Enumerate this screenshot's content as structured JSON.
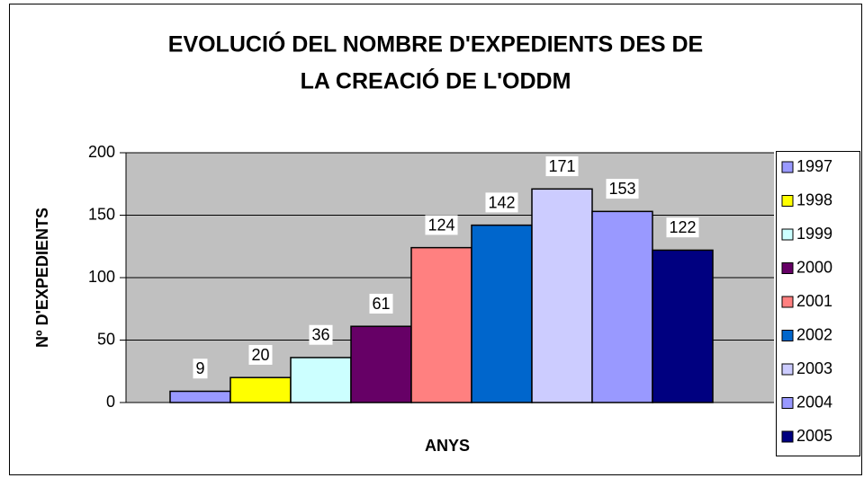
{
  "chart_data": {
    "type": "bar",
    "title": [
      "EVOLUCIÓ DEL NOMBRE D'EXPEDIENTS DES DE",
      "LA CREACIÓ DE L'ODDM"
    ],
    "x_label": "ANYS",
    "y_label": "Nº D'EXPEDIENTS",
    "series": [
      {
        "name": "1997",
        "color": "#9999ff",
        "values": [
          9
        ]
      },
      {
        "name": "1998",
        "color": "#ffff00",
        "values": [
          20
        ]
      },
      {
        "name": "1999",
        "color": "#ccffff",
        "values": [
          36
        ]
      },
      {
        "name": "2000",
        "color": "#660066",
        "values": [
          61
        ]
      },
      {
        "name": "2001",
        "color": "#ff8080",
        "values": [
          124
        ]
      },
      {
        "name": "2002",
        "color": "#0066cc",
        "values": [
          142
        ]
      },
      {
        "name": "2003",
        "color": "#ccccff",
        "values": [
          171
        ]
      },
      {
        "name": "2004",
        "color": "#9999ff",
        "values": [
          153
        ]
      },
      {
        "name": "2005",
        "color": "#000080",
        "values": [
          122
        ]
      }
    ],
    "ylim": [
      0,
      200
    ],
    "yticks": [
      0,
      50,
      100,
      150,
      200
    ],
    "grid": true,
    "plot_background": "#c0c0c0",
    "legend": "right"
  }
}
